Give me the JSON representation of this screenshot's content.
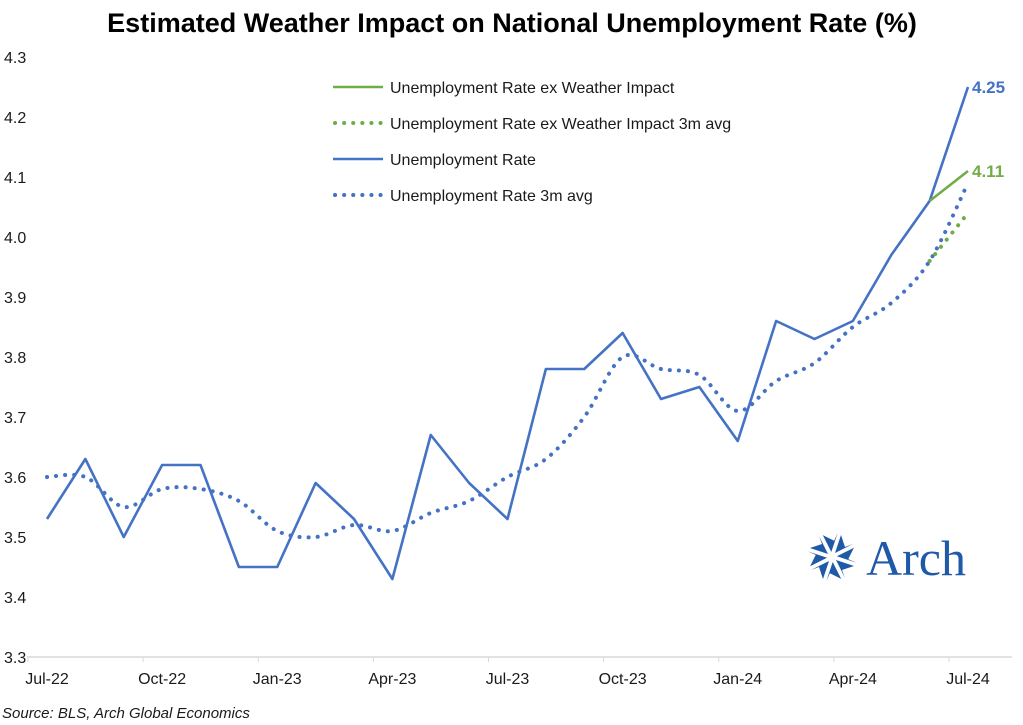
{
  "chart_data": {
    "type": "line",
    "title": "Estimated Weather Impact on National Unemployment Rate (%)",
    "xlabel": "",
    "ylabel": "",
    "ylim": [
      3.3,
      4.3
    ],
    "yticks": [
      "4.3",
      "4.2",
      "4.1",
      "4.0",
      "3.9",
      "3.8",
      "3.7",
      "3.6",
      "3.5",
      "3.4",
      "3.3"
    ],
    "ytick_values": [
      4.3,
      4.2,
      4.1,
      4.0,
      3.9,
      3.8,
      3.7,
      3.6,
      3.5,
      3.4,
      3.3
    ],
    "x": [
      "Jul-22",
      "Aug-22",
      "Sep-22",
      "Oct-22",
      "Nov-22",
      "Dec-22",
      "Jan-23",
      "Feb-23",
      "Mar-23",
      "Apr-23",
      "May-23",
      "Jun-23",
      "Jul-23",
      "Aug-23",
      "Sep-23",
      "Oct-23",
      "Nov-23",
      "Dec-23",
      "Jan-24",
      "Feb-24",
      "Mar-24",
      "Apr-24",
      "May-24",
      "Jun-24",
      "Jul-24"
    ],
    "xticks": [
      "Jul-22",
      "Oct-22",
      "Jan-23",
      "Apr-23",
      "Jul-23",
      "Oct-23",
      "Jan-24",
      "Apr-24",
      "Jul-24"
    ],
    "xtick_indices": [
      0,
      3,
      6,
      9,
      12,
      15,
      18,
      21,
      24
    ],
    "grid": false,
    "legend_position": "top-center",
    "series": [
      {
        "name": "Unemployment Rate ex Weather Impact",
        "color": "#70ad47",
        "style": "solid",
        "values": [
          null,
          null,
          null,
          null,
          null,
          null,
          null,
          null,
          null,
          null,
          null,
          null,
          null,
          null,
          null,
          null,
          null,
          null,
          null,
          null,
          null,
          null,
          null,
          4.06,
          4.11
        ],
        "end_label": "4.11"
      },
      {
        "name": "Unemployment Rate ex Weather Impact 3m avg",
        "color": "#70ad47",
        "style": "dotted",
        "values": [
          null,
          null,
          null,
          null,
          null,
          null,
          null,
          null,
          null,
          null,
          null,
          null,
          null,
          null,
          null,
          null,
          null,
          null,
          null,
          null,
          null,
          null,
          null,
          3.96,
          4.04
        ]
      },
      {
        "name": "Unemployment Rate",
        "color": "#4472c4",
        "style": "solid",
        "values": [
          3.53,
          3.63,
          3.5,
          3.62,
          3.62,
          3.45,
          3.45,
          3.59,
          3.53,
          3.43,
          3.67,
          3.59,
          3.53,
          3.78,
          3.78,
          3.84,
          3.73,
          3.75,
          3.66,
          3.86,
          3.83,
          3.86,
          3.97,
          4.06,
          4.25
        ],
        "end_label": "4.25"
      },
      {
        "name": "Unemployment Rate 3m avg",
        "color": "#4472c4",
        "style": "dotted",
        "values": [
          3.6,
          3.6,
          3.55,
          3.58,
          3.58,
          3.56,
          3.51,
          3.5,
          3.52,
          3.51,
          3.54,
          3.56,
          3.6,
          3.63,
          3.7,
          3.8,
          3.78,
          3.77,
          3.71,
          3.76,
          3.79,
          3.85,
          3.89,
          3.96,
          4.09
        ]
      }
    ],
    "source": "Source: BLS, Arch Global Economics"
  },
  "logo": {
    "name": "arch-logo",
    "text": "Arch",
    "color": "#1f5aa8"
  },
  "axis_color": "#d9d9d9"
}
